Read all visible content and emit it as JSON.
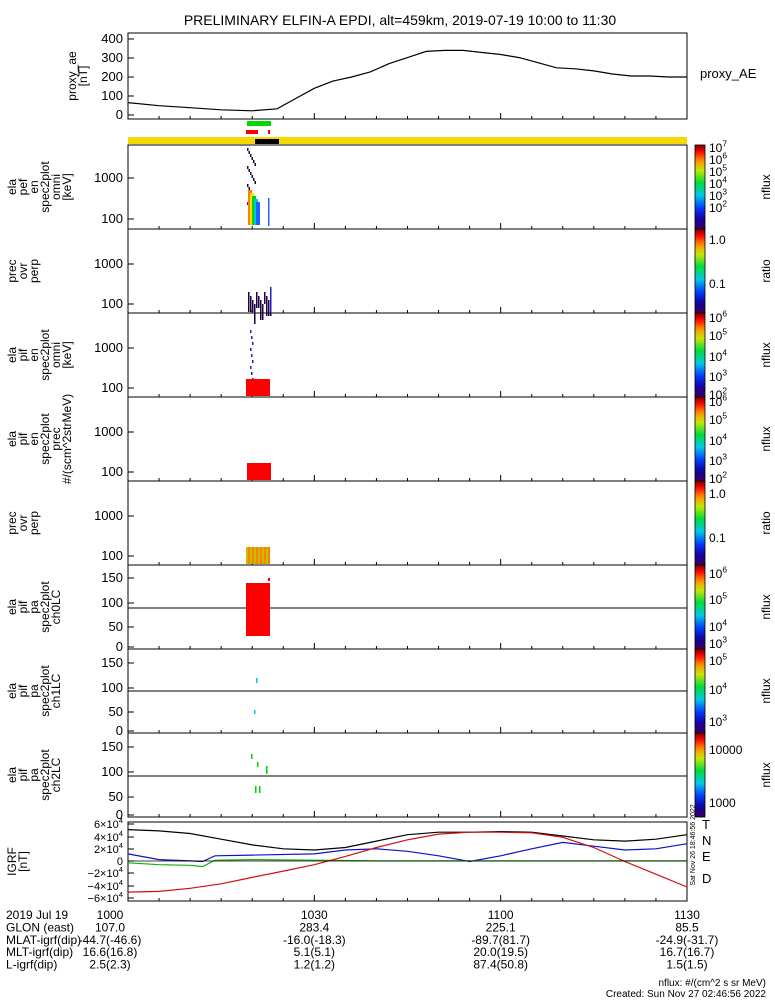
{
  "title": "PRELIMINARY ELFIN-A EPDI, alt=459km, 2019-07-19 10:00 to 11:30",
  "panels": [
    {
      "id": "ae",
      "ylabel": [
        "proxy_ae",
        "[nT]"
      ],
      "ticks": [
        "400",
        "300",
        "200",
        "100",
        "0"
      ],
      "right_label": "proxy_AE"
    },
    {
      "id": "pef",
      "ylabel": [
        "ela",
        "pef",
        "en",
        "spec2plot",
        "omni",
        "[keV]"
      ],
      "ticks": [
        "1000",
        "100"
      ],
      "cbar_label": "nflux",
      "cbar_ticks": [
        "10^7",
        "10^6",
        "10^5",
        "10^4",
        "10^3",
        "10^2"
      ]
    },
    {
      "id": "ratio1",
      "ylabel": [
        "prec",
        "ovr",
        "perp"
      ],
      "ticks": [
        "1000",
        "100"
      ],
      "cbar_label": "ratio",
      "cbar_ticks": [
        "1.0",
        "0.1"
      ]
    },
    {
      "id": "pif",
      "ylabel": [
        "ela",
        "pif",
        "en",
        "spec2plot",
        "omni",
        "[keV]"
      ],
      "ticks": [
        "1000",
        "100"
      ],
      "cbar_label": "nflux",
      "cbar_ticks": [
        "10^6",
        "10^5",
        "10^4",
        "10^3",
        "10^2"
      ]
    },
    {
      "id": "pif_prec",
      "ylabel": [
        "ela",
        "pif",
        "en",
        "spec2plot",
        "prec",
        "#/(scm^2strMeV)"
      ],
      "ticks": [
        "1000",
        "100"
      ],
      "cbar_label": "nflux",
      "cbar_ticks": [
        "10^6",
        "10^5",
        "10^4",
        "10^3",
        "10^2"
      ]
    },
    {
      "id": "ratio2",
      "ylabel": [
        "prec",
        "ovr",
        "perp"
      ],
      "ticks": [
        "1000",
        "100"
      ],
      "cbar_label": "ratio",
      "cbar_ticks": [
        "1.0",
        "0.1"
      ]
    },
    {
      "id": "ch0",
      "ylabel": [
        "ela",
        "pif",
        "pa",
        "spec2plot",
        "ch0LC"
      ],
      "ticks": [
        "150",
        "100",
        "50",
        "0"
      ],
      "cbar_label": "nflux",
      "cbar_ticks": [
        "10^6",
        "10^5",
        "10^4",
        "10^3"
      ]
    },
    {
      "id": "ch1",
      "ylabel": [
        "ela",
        "pif",
        "pa",
        "spec2plot",
        "ch1LC"
      ],
      "ticks": [
        "150",
        "100",
        "50",
        "0"
      ],
      "cbar_label": "nflux",
      "cbar_ticks": [
        "10^5",
        "10^4",
        "10^3"
      ]
    },
    {
      "id": "ch2",
      "ylabel": [
        "ela",
        "pif",
        "pa",
        "spec2plot",
        "ch2LC"
      ],
      "ticks": [
        "150",
        "100",
        "50",
        "0"
      ],
      "cbar_label": "nflux",
      "cbar_ticks": [
        "10000",
        "1000"
      ]
    },
    {
      "id": "igrf",
      "ylabel": [
        "IGRF",
        "[nT]"
      ],
      "ticks": [
        "6×10^4",
        "4×10^4",
        "2×10^4",
        "0",
        "−2×10^4",
        "−4×10^4",
        "−6×10^4"
      ],
      "legend": [
        "T",
        "N",
        "E",
        "D"
      ]
    }
  ],
  "colors": {
    "T": "#000000",
    "N": "#1010c8",
    "E": "#10b010",
    "D": "#d01010",
    "bar_yellow": "#f5d800",
    "green": "#00d800",
    "red": "#ff0000",
    "black": "#000000"
  },
  "footer": {
    "rows": [
      {
        "label": "2019 Jul 19",
        "values": [
          "1000",
          "1030",
          "1100",
          "1130"
        ]
      },
      {
        "label": "GLON (east)",
        "values": [
          "107.0",
          "283.4",
          "225.1",
          "85.5"
        ]
      },
      {
        "label": "MLAT-igrf(dip)",
        "values": [
          "-44.7(-46.6)",
          "-16.0(-18.3)",
          "-89.7(81.7)",
          "-24.9(-31.7)"
        ]
      },
      {
        "label": "MLT-igrf(dip)",
        "values": [
          "16.6(16.8)",
          "5.1(5.1)",
          "20.0(19.5)",
          "16.7(16.7)"
        ]
      },
      {
        "label": "L-igrf(dip)",
        "values": [
          "2.5(2.3)",
          "1.2(1.2)",
          "87.4(50.8)",
          "1.5(1.5)"
        ]
      }
    ],
    "units": "nflux: #/(cm^2 s sr MeV)",
    "created": "Created: Sun Nov 27 02:46:56 2022",
    "stamp": "Sat Nov 26 18:46:56 2022"
  },
  "chart_data": {
    "type": "line",
    "title": "PRELIMINARY ELFIN-A EPDI, alt=459km, 2019-07-19 10:00 to 11:30",
    "xlabel": "",
    "x_ticks": [
      "1000",
      "1030",
      "1100",
      "1130"
    ],
    "x_range_minutes": [
      0,
      90
    ],
    "series": [
      {
        "name": "proxy_AE",
        "panel": "ae",
        "ylim": [
          0,
          420
        ],
        "x": [
          0,
          5,
          10,
          15,
          20,
          24,
          27,
          30,
          33,
          36,
          39,
          42,
          45,
          48,
          51,
          54,
          57,
          60,
          63,
          66,
          69,
          72,
          75,
          78,
          81,
          84,
          87,
          90
        ],
        "y": [
          80,
          65,
          55,
          45,
          40,
          50,
          100,
          150,
          185,
          205,
          230,
          270,
          300,
          330,
          335,
          335,
          325,
          315,
          300,
          275,
          250,
          245,
          235,
          220,
          210,
          210,
          205,
          205
        ]
      },
      {
        "name": "T",
        "panel": "igrf",
        "ylim": [
          -62000,
          62000
        ],
        "x": [
          0,
          5,
          10,
          15,
          20,
          25,
          30,
          35,
          40,
          45,
          50,
          55,
          60,
          65,
          70,
          75,
          80,
          85,
          90
        ],
        "y": [
          50000,
          48000,
          44000,
          35000,
          26000,
          20000,
          18000,
          22000,
          32000,
          42000,
          46000,
          46000,
          47000,
          46000,
          40000,
          34000,
          32000,
          35000,
          42000
        ]
      },
      {
        "name": "N",
        "panel": "igrf",
        "ylim": [
          -62000,
          62000
        ],
        "x": [
          0,
          5,
          10,
          12,
          14,
          20,
          30,
          35,
          40,
          45,
          50,
          55,
          60,
          65,
          70,
          75,
          80,
          85,
          90
        ],
        "y": [
          12000,
          3000,
          1000,
          0,
          9000,
          10000,
          12000,
          18000,
          20000,
          16000,
          9000,
          0,
          9000,
          20000,
          30000,
          24000,
          18000,
          20000,
          28000
        ]
      },
      {
        "name": "E",
        "panel": "igrf",
        "ylim": [
          -62000,
          62000
        ],
        "x": [
          0,
          5,
          10,
          12,
          14,
          20,
          30,
          40,
          50,
          60,
          70,
          80,
          90
        ],
        "y": [
          -2000,
          -5000,
          -6000,
          -8000,
          2000,
          3000,
          2000,
          1000,
          1000,
          1000,
          1000,
          1000,
          1000
        ]
      },
      {
        "name": "D",
        "panel": "igrf",
        "ylim": [
          -62000,
          62000
        ],
        "x": [
          0,
          5,
          10,
          15,
          20,
          25,
          30,
          35,
          40,
          45,
          50,
          55,
          60,
          65,
          70,
          75,
          80,
          85,
          90
        ],
        "y": [
          -48000,
          -47000,
          -42000,
          -35000,
          -25000,
          -15000,
          -5000,
          8000,
          22000,
          34000,
          43000,
          46000,
          46000,
          45000,
          38000,
          22000,
          0,
          -20000,
          -40000
        ]
      }
    ]
  }
}
